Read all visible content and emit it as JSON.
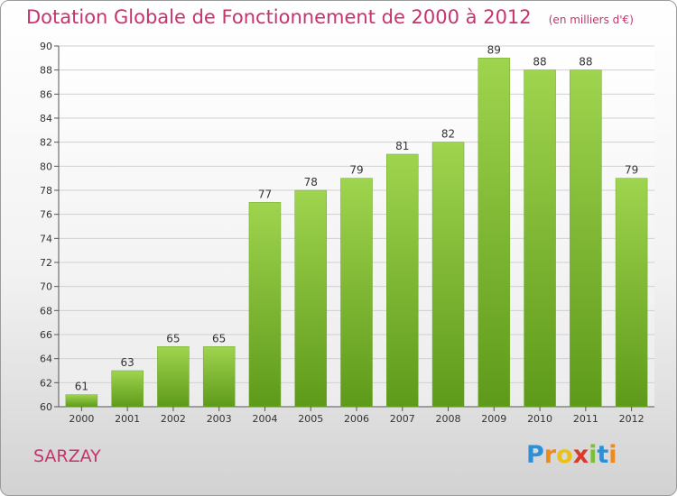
{
  "chart_data": {
    "type": "bar",
    "title": "Dotation Globale de Fonctionnement de 2000 à 2012",
    "subtitle": "(en milliers d'€)",
    "categories": [
      "2000",
      "2001",
      "2002",
      "2003",
      "2004",
      "2005",
      "2006",
      "2007",
      "2008",
      "2009",
      "2010",
      "2011",
      "2012"
    ],
    "values": [
      61,
      63,
      65,
      65,
      77,
      78,
      79,
      81,
      82,
      89,
      88,
      88,
      79
    ],
    "ylim": [
      60,
      90
    ],
    "yticks": [
      60,
      62,
      64,
      66,
      68,
      70,
      72,
      74,
      76,
      78,
      80,
      82,
      84,
      86,
      88,
      90
    ],
    "grid": true,
    "bar_color": "#8cc63f"
  },
  "footer": {
    "commune": "SARZAY",
    "logo_letters": [
      "P",
      "r",
      "o",
      "x",
      "i",
      "t",
      "i"
    ],
    "logo_colors": [
      "#2e8fd6",
      "#f08a1c",
      "#e8c21a",
      "#d83b2a",
      "#7bbf3a",
      "#2e8fd6",
      "#f08a1c"
    ]
  },
  "colors": {
    "title": "#c8326e",
    "axis_text": "#333333",
    "grid": "#d0d0d0"
  }
}
